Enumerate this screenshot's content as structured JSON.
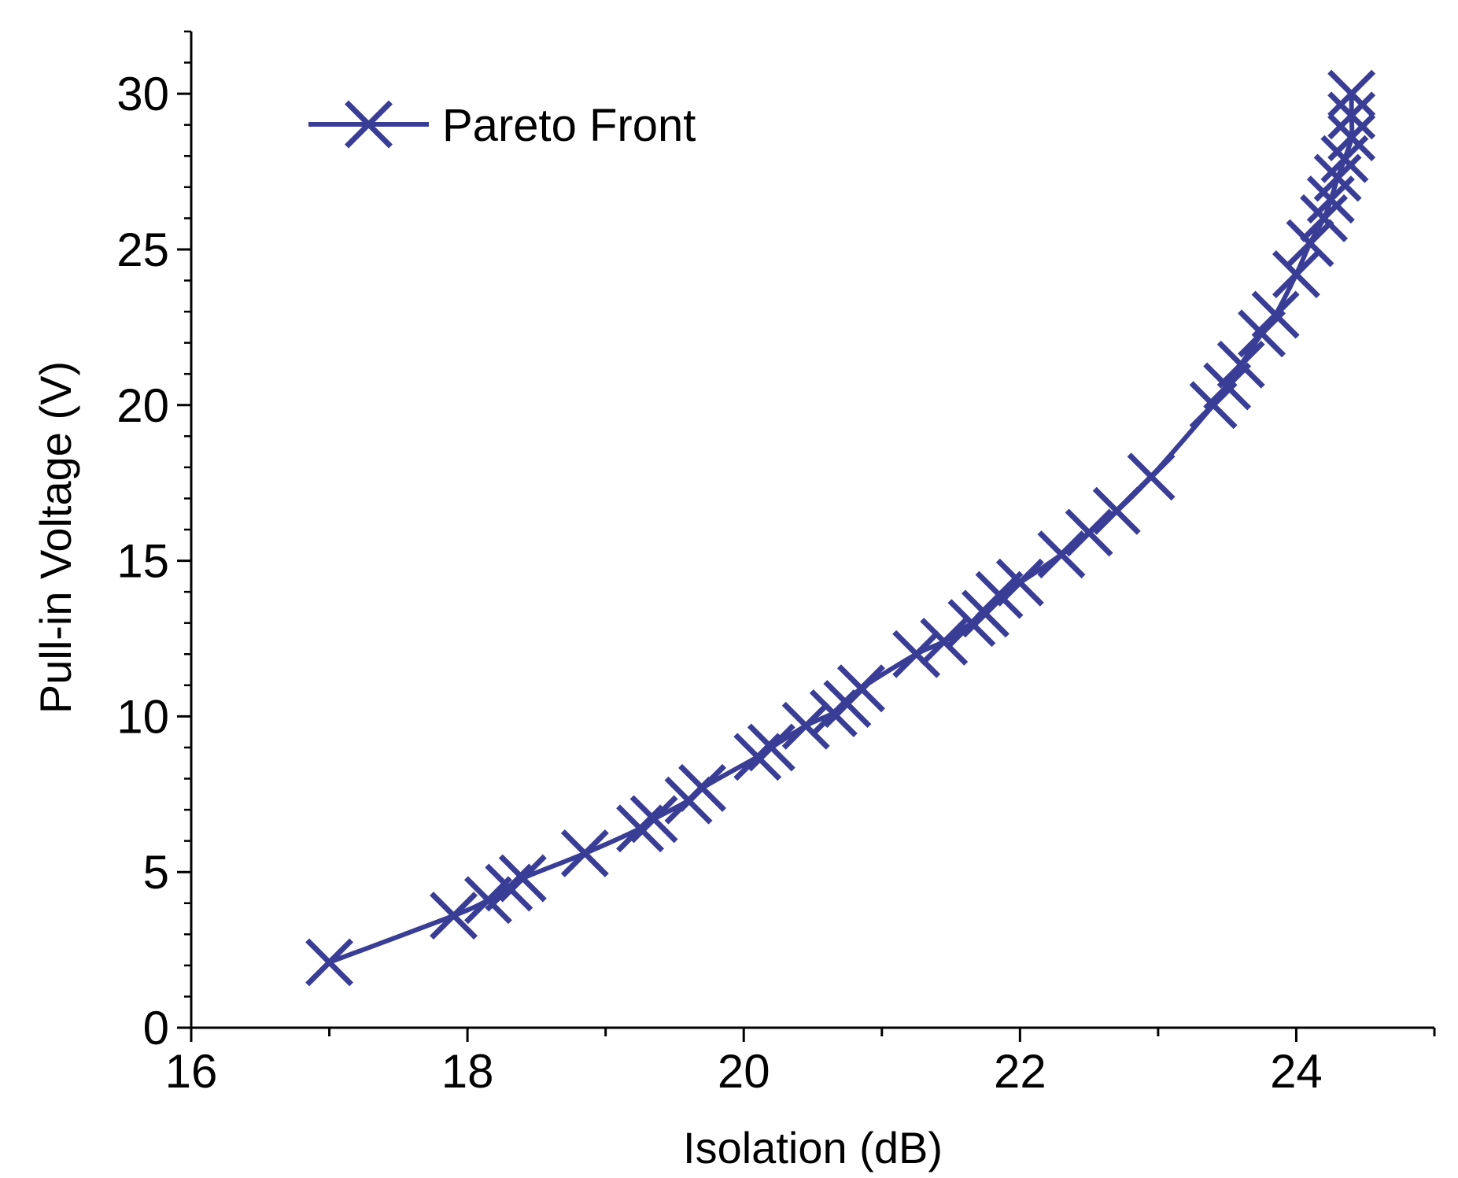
{
  "chart_data": {
    "type": "line",
    "title": "",
    "xlabel": "Isolation (dB)",
    "ylabel": "Pull-in Voltage (V)",
    "xlim": [
      16,
      25
    ],
    "ylim": [
      0,
      32
    ],
    "xticks": [
      16,
      18,
      20,
      22,
      24
    ],
    "yticks": [
      0,
      5,
      10,
      15,
      20,
      25,
      30
    ],
    "grid": false,
    "legend_position": "top-left",
    "marker": "x",
    "series": [
      {
        "name": "Pareto Front",
        "color": "#3a3d96",
        "points": [
          {
            "x": 17.0,
            "y": 2.1
          },
          {
            "x": 17.9,
            "y": 3.6
          },
          {
            "x": 18.15,
            "y": 4.1
          },
          {
            "x": 18.3,
            "y": 4.5
          },
          {
            "x": 18.4,
            "y": 4.8
          },
          {
            "x": 18.85,
            "y": 5.6
          },
          {
            "x": 19.25,
            "y": 6.4
          },
          {
            "x": 19.35,
            "y": 6.7
          },
          {
            "x": 19.6,
            "y": 7.3
          },
          {
            "x": 19.7,
            "y": 7.7
          },
          {
            "x": 20.1,
            "y": 8.7
          },
          {
            "x": 20.2,
            "y": 9.0
          },
          {
            "x": 20.45,
            "y": 9.7
          },
          {
            "x": 20.65,
            "y": 10.1
          },
          {
            "x": 20.75,
            "y": 10.4
          },
          {
            "x": 20.85,
            "y": 10.9
          },
          {
            "x": 21.25,
            "y": 12.0
          },
          {
            "x": 21.45,
            "y": 12.4
          },
          {
            "x": 21.65,
            "y": 13.0
          },
          {
            "x": 21.75,
            "y": 13.3
          },
          {
            "x": 21.85,
            "y": 13.9
          },
          {
            "x": 22.0,
            "y": 14.3
          },
          {
            "x": 22.3,
            "y": 15.2
          },
          {
            "x": 22.5,
            "y": 15.9
          },
          {
            "x": 22.7,
            "y": 16.6
          },
          {
            "x": 22.95,
            "y": 17.7
          },
          {
            "x": 23.4,
            "y": 20.0
          },
          {
            "x": 23.5,
            "y": 20.6
          },
          {
            "x": 23.6,
            "y": 21.3
          },
          {
            "x": 23.75,
            "y": 22.3
          },
          {
            "x": 23.85,
            "y": 22.9
          },
          {
            "x": 24.0,
            "y": 24.2
          },
          {
            "x": 24.1,
            "y": 25.2
          },
          {
            "x": 24.2,
            "y": 26.0
          },
          {
            "x": 24.25,
            "y": 26.6
          },
          {
            "x": 24.3,
            "y": 27.3
          },
          {
            "x": 24.35,
            "y": 27.9
          },
          {
            "x": 24.4,
            "y": 28.6
          },
          {
            "x": 24.4,
            "y": 29.3
          },
          {
            "x": 24.4,
            "y": 30.0
          }
        ]
      }
    ]
  }
}
